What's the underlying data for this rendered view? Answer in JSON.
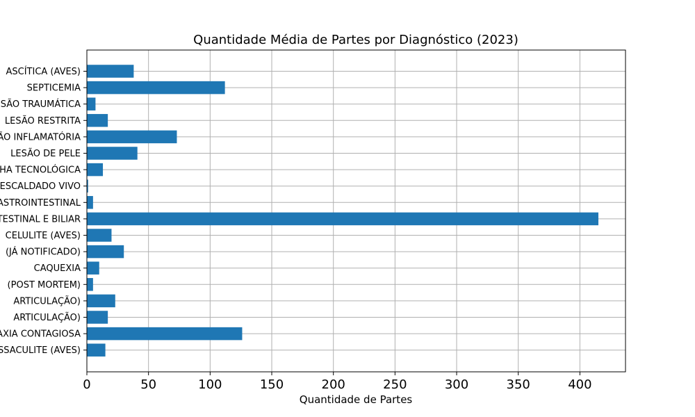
{
  "chart_data": {
    "type": "bar",
    "orientation": "horizontal",
    "title": "Quantidade Média de Partes por Diagnóstico (2023)",
    "xlabel": "Quantidade de Partes",
    "ylabel": "",
    "xlim": [
      0,
      437
    ],
    "xticks": [
      "0",
      "50",
      "100",
      "150",
      "200",
      "250",
      "300",
      "350",
      "400"
    ],
    "grid": true,
    "bar_color": "#1f77b4",
    "categories": [
      "ASCÍTICA (AVES)",
      "SEPTICEMIA",
      "LESÃO TRAUMÁTICA",
      "LESÃO RESTRITA",
      "LESÃO INFLAMATÓRIA",
      "LESÃO DE PELE",
      "FALHA TECNOLÓGICA",
      "ESCALDADO VIVO",
      "GASTROINTESTINAL",
      "INTESTINAL E BILIAR",
      "CELULITE (AVES)",
      "(JÁ NOTIFICADO)",
      "CAQUEXIA",
      "(POST MORTEM)",
      "ARTICULAÇÃO)",
      "ARTICULAÇÃO)",
      "AGALAXIA CONTAGIOSA",
      "AEROSSACULITE (AVES)"
    ],
    "values": [
      38,
      112,
      7,
      17,
      73,
      41,
      13,
      1,
      5,
      415,
      20,
      30,
      10,
      5,
      23,
      17,
      126,
      15
    ]
  }
}
